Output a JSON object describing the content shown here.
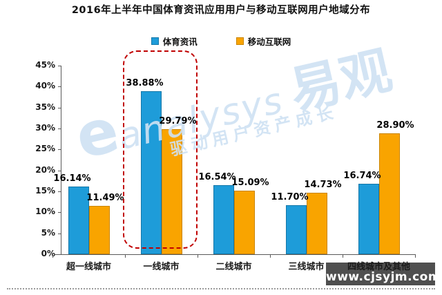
{
  "title": "2016年上半年中国体育资讯应用用户与移动互联网用户地域分布",
  "chart_data": {
    "type": "bar",
    "title": "2016年上半年中国体育资讯应用用户与移动互联网用户地域分布",
    "categories": [
      "超一线城市",
      "一线城市",
      "二线城市",
      "三线城市",
      "四线城市及其他"
    ],
    "series": [
      {
        "name": "体育资讯",
        "color": "#1E9CD9",
        "border_color": "#1477A8",
        "values": [
          16.14,
          38.88,
          16.54,
          11.7,
          16.74
        ]
      },
      {
        "name": "移动互联网",
        "color": "#F9A400",
        "border_color": "#C98400",
        "values": [
          11.49,
          29.79,
          15.09,
          14.73,
          28.9
        ]
      }
    ],
    "value_suffix": "%",
    "ylim": [
      0,
      45
    ],
    "ytick_step": 5,
    "ytick_suffix": "%",
    "grid": false,
    "legend_position": "top-center",
    "highlight_category": "一线城市",
    "highlight_color": "#C00000",
    "data_labels": [
      "16.14%",
      "38.88%",
      "16.54%",
      "11.70%",
      "16.74%",
      "11.49%",
      "29.79%",
      "15.09%",
      "14.73%",
      "28.90%"
    ]
  },
  "watermark": {
    "logo_e": "e",
    "logo_latin": "analysys",
    "logo_cn": "易观",
    "slogan": "驱动用户资产成长"
  },
  "footer": {
    "site": "www.cjsyjm.com"
  }
}
